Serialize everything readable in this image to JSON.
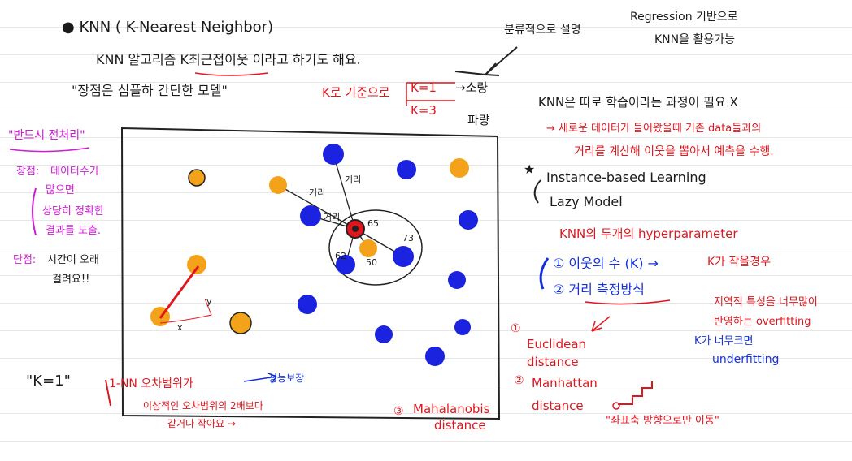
{
  "title": "KNN ( K-Nearest Neighbor)",
  "intro": "KNN 알고리즘 K최근접이웃 이라고 하기도 해요.",
  "intro_quote": "\"장점은 심플하 간단한 모델\"",
  "k_basis": "K로 기준으로",
  "k1_label": "K=1",
  "k1_arrow": "→소량",
  "k3_label": "K=3",
  "k3_arrow": "파량",
  "classify_label": "분류적으로 설명",
  "regression_line1": "Regression 기반으로",
  "regression_line2": "KNN을 활용가능",
  "no_training": "KNN은 따로 학습이라는 과정이 필요 X",
  "new_data_line1": "→ 새로운 데이터가 들어왔을때 기존 data들과의",
  "new_data_line2": "거리를 계산해 이웃을 뽑아서 예측을 수행.",
  "instance_based": "Instance-based Learning",
  "lazy_model": "Lazy Model",
  "hyper_title": "KNN의 두개의 hyperparameter",
  "hyper1": "① 이웃의 수 (K) →",
  "hyper1_note": "K가 작을경우",
  "hyper1_sub1": "지역적 특성을 너무많이",
  "hyper1_sub2": "반영하는 overfitting",
  "hyper2": "② 거리 측정방식",
  "hyper2_note1": "K가 너무크면",
  "hyper2_note2": "underfitting",
  "euclid_line1": "Euclidean",
  "euclid_line2": "distance",
  "manhattan_line1": "Manhattan",
  "manhattan_line2": "distance",
  "manhattan_note": "\"좌표축 방향으로만 이동\"",
  "mahal_line1": "Mahalanobis",
  "mahal_line2": "distance",
  "cons_title": "\"반드시 전처리\"",
  "pros_label": "장점:",
  "pros_text1": "데이터수가",
  "pros_text2": "많으면",
  "pros_text3": "상당히 정확한",
  "pros_text4": "결과를 도출.",
  "cons_label": "단점:",
  "cons_text1": "시간이 오래",
  "cons_text2": "걸려요!!",
  "k1_bottom": "\"K=1\"",
  "nn_line1": "1-NN 오차범위가",
  "nn_line2": "이상적인 오차범위의 2배보다",
  "nn_line3": "같거나 작아요 →",
  "nn_note": "성능보장",
  "nn_tag": "→ 성능보장",
  "dist_labels": [
    "거리",
    "거리",
    "거리"
  ],
  "num_65": "65",
  "num_73": "73",
  "num_62": "62",
  "num_50": "50",
  "x_label": "x",
  "y_label": "y",
  "colors": {
    "orange": "#f5a21b",
    "blue": "#1b22e0",
    "red": "#e0161e",
    "magenta": "#d21ad8",
    "black": "#1a1a1a"
  }
}
